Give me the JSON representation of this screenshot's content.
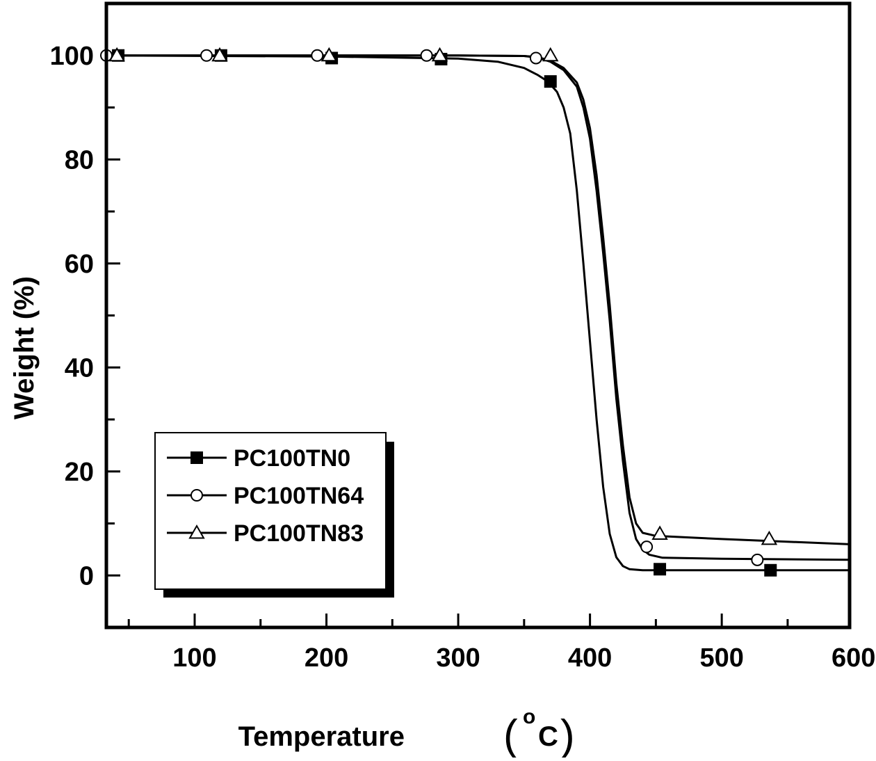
{
  "chart_data": {
    "type": "line",
    "xlabel": "Temperature",
    "xlabel_unit_super": "o",
    "xlabel_unit_letter": "C",
    "xlabel_open": "(",
    "xlabel_close": ")",
    "ylabel": "Weight (%)",
    "xlim": [
      33,
      597
    ],
    "ylim": [
      -10,
      110
    ],
    "xticks": [
      100,
      200,
      300,
      400,
      500,
      600
    ],
    "yticks": [
      0,
      20,
      40,
      60,
      80,
      100
    ],
    "x_minor_step": 50,
    "y_minor_step": 10,
    "grid": false,
    "legend_position": "lower-left",
    "series": [
      {
        "name": "PC100TN0",
        "marker": "filled-square",
        "color": "#000000",
        "curve": [
          [
            33,
            100
          ],
          [
            200,
            99.8
          ],
          [
            300,
            99.4
          ],
          [
            330,
            98.8
          ],
          [
            350,
            97.6
          ],
          [
            360,
            96.3
          ],
          [
            368,
            95.0
          ],
          [
            375,
            93.0
          ],
          [
            380,
            90.0
          ],
          [
            385,
            85.0
          ],
          [
            390,
            74.0
          ],
          [
            395,
            60.0
          ],
          [
            400,
            45.0
          ],
          [
            405,
            30.0
          ],
          [
            410,
            17.0
          ],
          [
            415,
            8.0
          ],
          [
            420,
            3.5
          ],
          [
            425,
            1.8
          ],
          [
            430,
            1.2
          ],
          [
            440,
            1.0
          ],
          [
            500,
            1.0
          ],
          [
            597,
            1.0
          ]
        ],
        "markers": [
          [
            42,
            100
          ],
          [
            120,
            100
          ],
          [
            204,
            99.5
          ],
          [
            287,
            99.3
          ],
          [
            370,
            95
          ],
          [
            453,
            1.2
          ],
          [
            537,
            1.0
          ]
        ]
      },
      {
        "name": "PC100TN64",
        "marker": "open-circle",
        "color": "#000000",
        "curve": [
          [
            33,
            100
          ],
          [
            200,
            100
          ],
          [
            300,
            100
          ],
          [
            350,
            99.9
          ],
          [
            360,
            99.6
          ],
          [
            370,
            98.8
          ],
          [
            380,
            97.2
          ],
          [
            390,
            94.0
          ],
          [
            395,
            90.0
          ],
          [
            400,
            84.0
          ],
          [
            405,
            74.0
          ],
          [
            410,
            62.0
          ],
          [
            415,
            49.0
          ],
          [
            418,
            40.0
          ],
          [
            420,
            34.0
          ],
          [
            425,
            22.0
          ],
          [
            430,
            12.0
          ],
          [
            435,
            7.0
          ],
          [
            440,
            5.0
          ],
          [
            445,
            4.0
          ],
          [
            455,
            3.4
          ],
          [
            500,
            3.2
          ],
          [
            597,
            3.0
          ]
        ],
        "markers": [
          [
            33,
            100
          ],
          [
            109,
            100
          ],
          [
            193,
            100
          ],
          [
            276,
            100
          ],
          [
            359,
            99.5
          ],
          [
            443,
            5.5
          ],
          [
            527,
            3.0
          ]
        ]
      },
      {
        "name": "PC100TN83",
        "marker": "open-triangle",
        "color": "#000000",
        "curve": [
          [
            33,
            100
          ],
          [
            200,
            100
          ],
          [
            300,
            100
          ],
          [
            350,
            99.9
          ],
          [
            360,
            99.7
          ],
          [
            370,
            99.0
          ],
          [
            380,
            97.6
          ],
          [
            390,
            94.8
          ],
          [
            395,
            91.5
          ],
          [
            400,
            86.0
          ],
          [
            405,
            77.0
          ],
          [
            410,
            65.0
          ],
          [
            415,
            52.0
          ],
          [
            418,
            43.0
          ],
          [
            420,
            37.0
          ],
          [
            425,
            25.0
          ],
          [
            430,
            15.0
          ],
          [
            435,
            10.0
          ],
          [
            440,
            8.2
          ],
          [
            450,
            7.6
          ],
          [
            500,
            7.0
          ],
          [
            597,
            6.0
          ]
        ],
        "markers": [
          [
            41,
            100
          ],
          [
            119,
            100
          ],
          [
            202,
            100
          ],
          [
            286,
            100
          ],
          [
            370,
            100
          ],
          [
            453,
            8.0
          ],
          [
            536,
            7.0
          ]
        ]
      }
    ]
  }
}
